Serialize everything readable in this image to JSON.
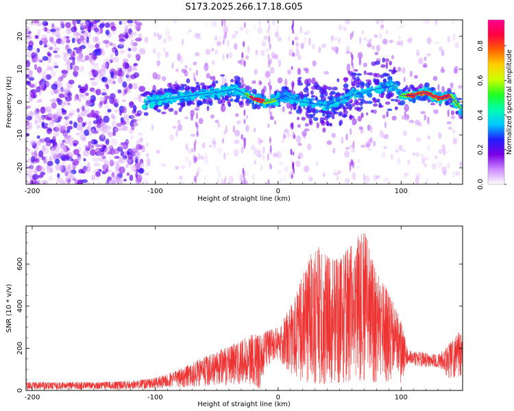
{
  "figure_title": "S173.2025.266.17.18.G05",
  "colorbar": {
    "label": "Normalized spectral amplitude",
    "range": [
      0.0,
      0.95
    ],
    "ticks": [
      "0.0",
      "0.2",
      "0.4",
      "0.6",
      "0.8"
    ],
    "colors": [
      "#ffffff",
      "#cc88ff",
      "#7a00e6",
      "#2020ff",
      "#00c8ff",
      "#00ffb0",
      "#20ff20",
      "#ccff00",
      "#ffd000",
      "#ff6000",
      "#ff0040",
      "#ff0090"
    ]
  },
  "chart_data": [
    {
      "type": "heatmap",
      "title": "S173.2025.266.17.18.G05",
      "xlabel": "Height of straight line (km)",
      "ylabel": "Frequency (Hz)",
      "xlim": [
        -205,
        150
      ],
      "ylim": [
        -25,
        25
      ],
      "xticks": [
        -200,
        -100,
        0,
        100
      ],
      "yticks": [
        -20,
        -10,
        0,
        10,
        20
      ],
      "colorbar_label": "Normalized spectral amplitude",
      "notes": "Broad low-amplitude speckle for x < -110 km; concentrated energy band near 0 Hz from -110 km to 150 km with maxima (~0.9) near -20 to -10 km and 100 to 140 km.",
      "ridge": {
        "x": [
          -110,
          -90,
          -70,
          -50,
          -35,
          -20,
          -10,
          0,
          5,
          20,
          40,
          60,
          80,
          95,
          100,
          110,
          120,
          130,
          140,
          150
        ],
        "y": [
          0,
          1,
          2,
          3,
          4,
          1,
          0,
          1,
          2,
          0,
          -1,
          2,
          4,
          5,
          2,
          2,
          3,
          1,
          2,
          -3
        ]
      }
    },
    {
      "type": "line",
      "xlabel": "Height of straight line (km)",
      "ylabel": "SNR (10 * v/v)",
      "xlim": [
        -205,
        150
      ],
      "ylim": [
        0,
        780
      ],
      "xticks": [
        -200,
        -100,
        0,
        100
      ],
      "yticks": [
        0,
        200,
        400,
        600
      ],
      "color": "#ee3333",
      "envelope": {
        "x": [
          -205,
          -150,
          -120,
          -100,
          -80,
          -60,
          -40,
          -20,
          -15,
          -10,
          0,
          10,
          20,
          30,
          40,
          50,
          60,
          70,
          80,
          90,
          100,
          105,
          110,
          120,
          130,
          140,
          150
        ],
        "upper": [
          40,
          40,
          45,
          60,
          100,
          160,
          210,
          270,
          260,
          280,
          300,
          400,
          550,
          700,
          640,
          620,
          700,
          780,
          560,
          470,
          330,
          200,
          185,
          180,
          170,
          230,
          300
        ],
        "lower": [
          5,
          5,
          5,
          10,
          15,
          20,
          25,
          30,
          5,
          110,
          150,
          80,
          40,
          30,
          30,
          35,
          40,
          40,
          35,
          40,
          30,
          125,
          120,
          110,
          110,
          50,
          70
        ]
      }
    }
  ]
}
